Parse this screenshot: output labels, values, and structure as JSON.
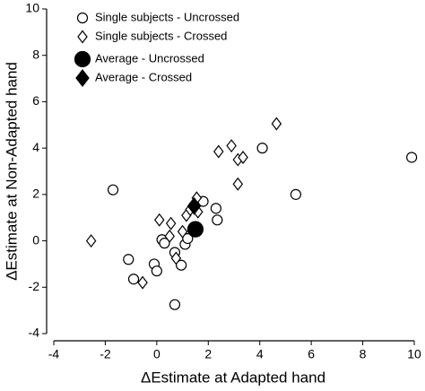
{
  "chart_data": {
    "type": "scatter",
    "x_label": "ΔEstimate at Adapted hand",
    "y_label": "ΔEstimate at Non-Adapted hand",
    "xlim": [
      -4,
      10
    ],
    "xticks": [
      -4,
      -2,
      0,
      2,
      4,
      6,
      8,
      10
    ],
    "ylim": [
      -4,
      10
    ],
    "yticks": [
      -4,
      -2,
      0,
      2,
      4,
      6,
      8,
      10
    ],
    "legend": "upper left",
    "series": [
      {
        "name": "Single subjects - Uncrossed",
        "marker": "circle",
        "filled": false,
        "color": "#000000",
        "x": [
          -1.7,
          -1.1,
          -0.9,
          -0.1,
          0.0,
          0.2,
          0.3,
          0.7,
          0.95,
          1.1,
          1.2,
          0.7,
          1.8,
          2.3,
          2.35,
          4.1,
          5.4,
          9.9
        ],
        "y": [
          2.2,
          -0.8,
          -1.65,
          -1.0,
          -1.3,
          0.05,
          -0.1,
          -0.5,
          -1.05,
          -0.15,
          0.1,
          -2.75,
          1.7,
          1.4,
          0.9,
          4.0,
          2.0,
          3.6
        ]
      },
      {
        "name": "Single subjects - Crossed",
        "marker": "diamond",
        "filled": false,
        "color": "#000000",
        "x": [
          -2.55,
          -0.55,
          0.1,
          0.5,
          0.55,
          0.75,
          1.0,
          1.15,
          1.3,
          1.5,
          1.55,
          1.6,
          2.4,
          2.9,
          3.15,
          3.35,
          3.15,
          4.65
        ],
        "y": [
          0.0,
          -1.8,
          0.9,
          0.2,
          0.75,
          -0.75,
          0.4,
          1.1,
          1.35,
          1.55,
          1.85,
          1.25,
          3.85,
          4.1,
          3.5,
          3.6,
          2.45,
          5.05
        ]
      },
      {
        "name": "Average - Uncrossed",
        "marker": "circle",
        "filled": true,
        "color": "#000000",
        "x": [
          1.5
        ],
        "y": [
          0.5
        ]
      },
      {
        "name": "Average - Crossed",
        "marker": "diamond",
        "filled": true,
        "color": "#000000",
        "x": [
          1.45
        ],
        "y": [
          1.5
        ]
      }
    ]
  }
}
